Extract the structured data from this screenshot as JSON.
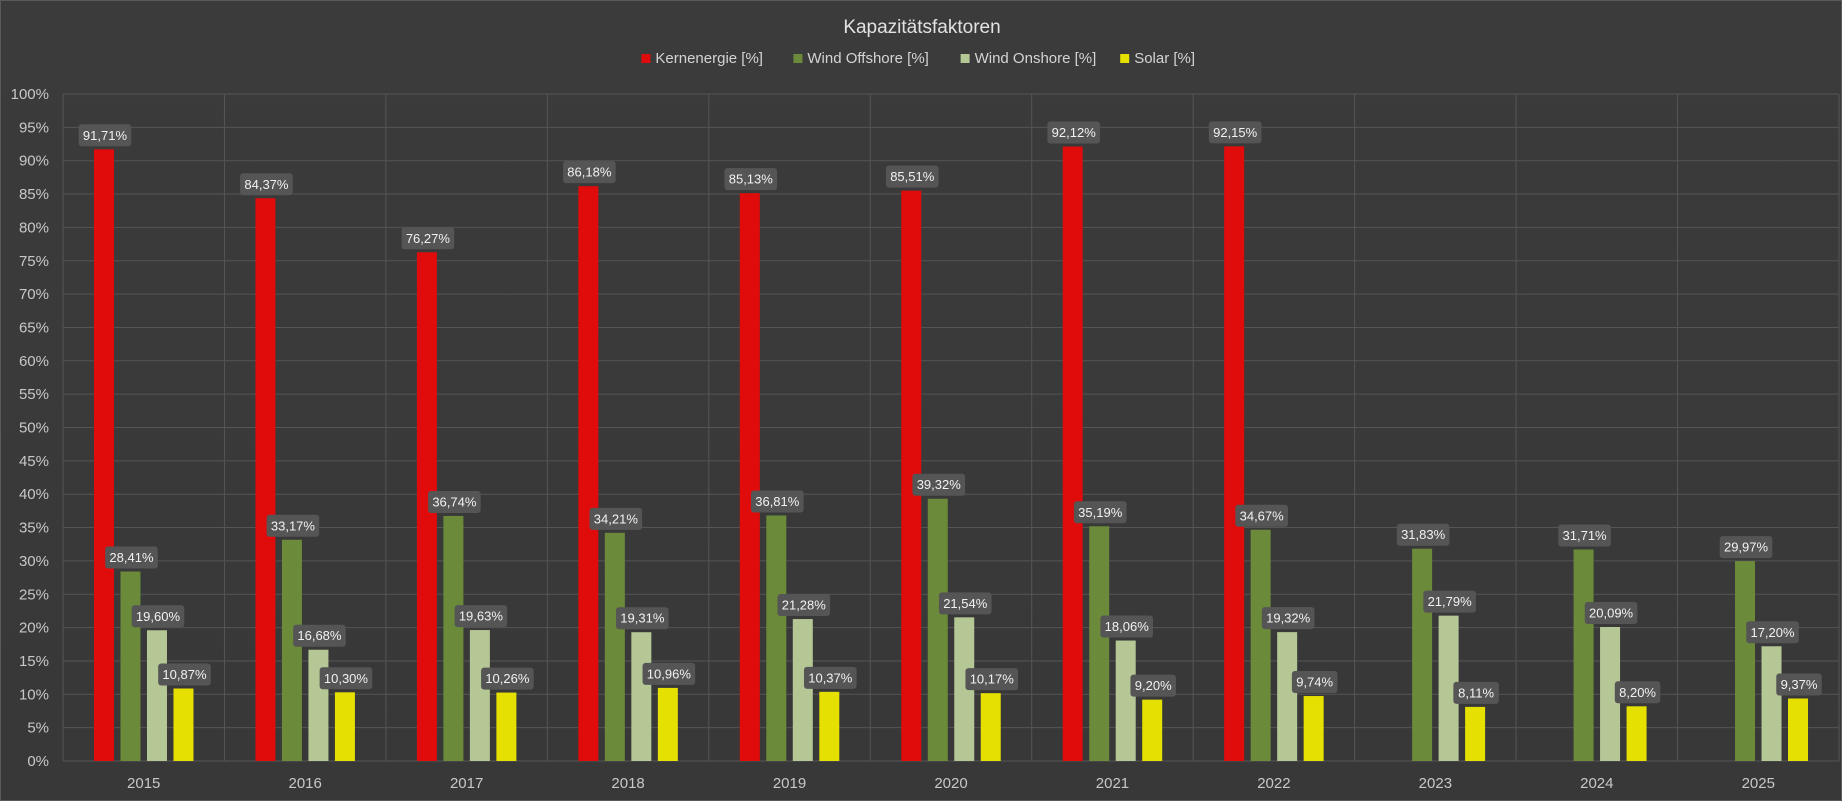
{
  "chart_data": {
    "type": "bar",
    "title": "Kapazitätsfaktoren",
    "xlabel": "",
    "ylabel": "",
    "ylim": [
      0,
      100
    ],
    "y_ticks": [
      "0%",
      "5%",
      "10%",
      "15%",
      "20%",
      "25%",
      "30%",
      "35%",
      "40%",
      "45%",
      "50%",
      "55%",
      "60%",
      "65%",
      "70%",
      "75%",
      "80%",
      "85%",
      "90%",
      "95%",
      "100%"
    ],
    "grid": true,
    "legend_position": "top",
    "categories": [
      "2015",
      "2016",
      "2017",
      "2018",
      "2019",
      "2020",
      "2021",
      "2022",
      "2023",
      "2024",
      "2025"
    ],
    "series": [
      {
        "name": "Kernenergie [%]",
        "color": "#e00b0b",
        "values": [
          91.71,
          84.37,
          76.27,
          86.18,
          85.13,
          85.51,
          92.12,
          92.15,
          null,
          null,
          null
        ],
        "labels": [
          "91,71%",
          "84,37%",
          "76,27%",
          "86,18%",
          "85,13%",
          "85,51%",
          "92,12%",
          "92,15%",
          null,
          null,
          null
        ]
      },
      {
        "name": "Wind Offshore [%]",
        "color": "#6b8a3a",
        "values": [
          28.41,
          33.17,
          36.74,
          34.21,
          36.81,
          39.32,
          35.19,
          34.67,
          31.83,
          31.71,
          29.97
        ],
        "labels": [
          "28,41%",
          "33,17%",
          "36,74%",
          "34,21%",
          "36,81%",
          "39,32%",
          "35,19%",
          "34,67%",
          "31,83%",
          "31,71%",
          "29,97%"
        ]
      },
      {
        "name": "Wind Onshore [%]",
        "color": "#b5c795",
        "values": [
          19.6,
          16.68,
          19.63,
          19.31,
          21.28,
          21.54,
          18.06,
          19.32,
          21.79,
          20.09,
          17.2
        ],
        "labels": [
          "19,60%",
          "16,68%",
          "19,63%",
          "19,31%",
          "21,28%",
          "21,54%",
          "18,06%",
          "19,32%",
          "21,79%",
          "20,09%",
          "17,20%"
        ]
      },
      {
        "name": "Solar [%]",
        "color": "#e5e000",
        "values": [
          10.87,
          10.3,
          10.26,
          10.96,
          10.37,
          10.17,
          9.2,
          9.74,
          8.11,
          8.2,
          9.37
        ],
        "labels": [
          "10,87%",
          "10,30%",
          "10,26%",
          "10,96%",
          "10,37%",
          "10,17%",
          "9,20%",
          "9,74%",
          "8,11%",
          "8,20%",
          "9,37%"
        ]
      }
    ]
  }
}
